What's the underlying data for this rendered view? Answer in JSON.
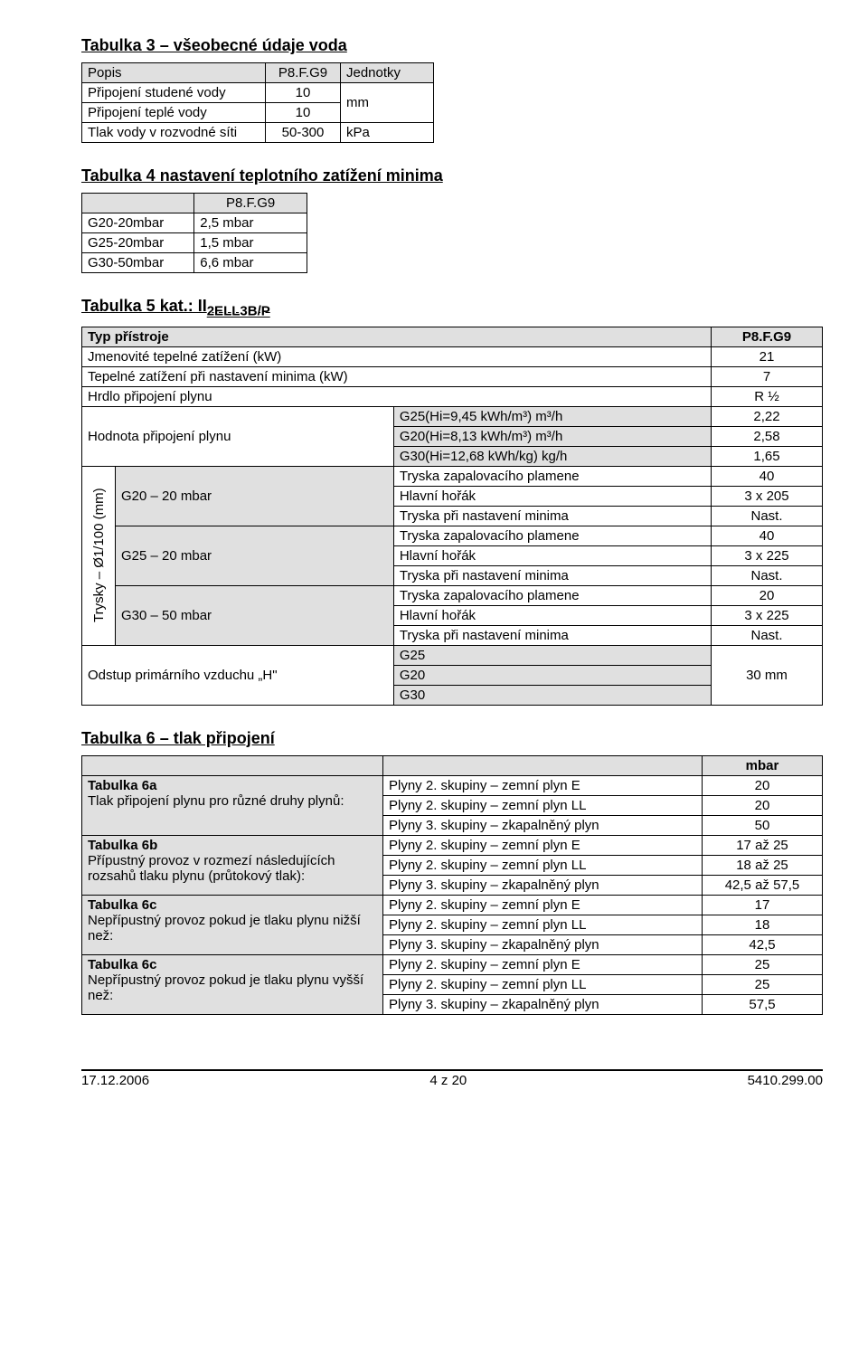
{
  "t3": {
    "title": "Tabulka 3 – všeobecné údaje voda",
    "head_popis": "Popis",
    "head_model": "P8.F.G9",
    "head_unit": "Jednotky",
    "r1_label": "Připojení studené vody",
    "r1_val": "10",
    "r2_label": "Připojení teplé vody",
    "r2_val": "10",
    "unit_mm": "mm",
    "r3_label": "Tlak vody v rozvodné síti",
    "r3_val": "50-300",
    "r3_unit": "kPa"
  },
  "t4": {
    "title": "Tabulka 4 nastavení teplotního zatížení minima",
    "head_model": "P8.F.G9",
    "r1a": "G20-20mbar",
    "r1b": "2,5 mbar",
    "r2a": "G25-20mbar",
    "r2b": "1,5 mbar",
    "r3a": "G30-50mbar",
    "r3b": "6,6 mbar"
  },
  "t5": {
    "title": "Tabulka 5 kat.: II",
    "title_sub": "2ELL3B/P",
    "head_typ": "Typ přístroje",
    "head_model": "P8.F.G9",
    "r1_label": "Jmenovité tepelné zatížení (kW)",
    "r1_val": "21",
    "r2_label": "Tepelné zatížení při nastavení minima (kW)",
    "r2_val": "7",
    "r3_label": "Hrdlo připojení plynu",
    "r3_val": "R ½",
    "hodnota_label": "Hodnota připojení plynu",
    "h1_param": "G25(Hi=9,45 kWh/m³) m³/h",
    "h1_val": "2,22",
    "h2_param": "G20(Hi=8,13 kWh/m³) m³/h",
    "h2_val": "2,58",
    "h3_param": "G30(Hi=12,68 kWh/kg) kg/h",
    "h3_val": "1,65",
    "trysky_label": "Trysky – Ø1/100 (mm)",
    "g20": "G20 – 20 mbar",
    "g25": "G25 – 20 mbar",
    "g30": "G30 – 50 mbar",
    "row_zap": "Tryska zapalovacího plamene",
    "row_hlavni": "Hlavní hořák",
    "row_min": "Tryska při nastavení minima",
    "g20_zap": "40",
    "g20_hl": "3 x 205",
    "g20_min": "Nast.",
    "g25_zap": "40",
    "g25_hl": "3 x 225",
    "g25_min": "Nast.",
    "g30_zap": "20",
    "g30_hl": "3 x 225",
    "g30_min": "Nast.",
    "odstup_label": "Odstup primárního vzduchu „H\"",
    "odstup_g25": "G25",
    "odstup_g20": "G20",
    "odstup_g30": "G30",
    "odstup_val": "30 mm"
  },
  "t6": {
    "title": "Tabulka 6 – tlak připojení",
    "unit": "mbar",
    "a_title": "Tabulka 6a",
    "a_desc": "Tlak připojení plynu pro různé druhy plynů:",
    "b_title": "Tabulka 6b",
    "b_desc": "Přípustný provoz v rozmezí následujících rozsahů tlaku plynu (průtokový tlak):",
    "c1_title": "Tabulka 6c",
    "c1_desc": "Nepřípustný provoz pokud je tlaku plynu nižší než:",
    "c2_title": "Tabulka 6c",
    "c2_desc": "Nepřípustný provoz pokud je tlaku plynu vyšší než:",
    "gas_e": "Plyny 2. skupiny – zemní plyn E",
    "gas_ll": "Plyny 2. skupiny – zemní plyn LL",
    "gas_lpg": "Plyny 3. skupiny – zkapalněný plyn",
    "a_e": "20",
    "a_ll": "20",
    "a_lpg": "50",
    "b_e": "17 až 25",
    "b_ll": "18 až 25",
    "b_lpg": "42,5 až 57,5",
    "c1_e": "17",
    "c1_ll": "18",
    "c1_lpg": "42,5",
    "c2_e": "25",
    "c2_ll": "25",
    "c2_lpg": "57,5"
  },
  "footer": {
    "date": "17.12.2006",
    "page": "4 z 20",
    "doc": "5410.299.00"
  }
}
